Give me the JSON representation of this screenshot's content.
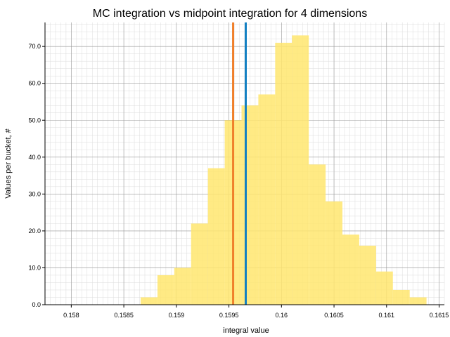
{
  "chart_data": {
    "type": "bar",
    "title": "MC integration vs midpoint integration for 4 dimensions",
    "xlabel": "integral value",
    "ylabel": "Values per bucket, #",
    "xlim": [
      0.15775,
      0.16155
    ],
    "ylim": [
      0,
      76.5
    ],
    "x_ticks": [
      0.158,
      0.1585,
      0.159,
      0.1595,
      0.16,
      0.1605,
      0.161,
      0.1615
    ],
    "x_tick_labels": [
      "0.158",
      "0.1585",
      "0.159",
      "0.1595",
      "0.16",
      "0.1605",
      "0.161",
      "0.1615"
    ],
    "y_ticks": [
      0,
      10,
      20,
      30,
      40,
      50,
      60,
      70
    ],
    "y_tick_labels": [
      "0.0",
      "10.0",
      "20.0",
      "30.0",
      "40.0",
      "50.0",
      "60.0",
      "70.0"
    ],
    "grid": true,
    "bin_edges": [
      0.15786,
      0.15802,
      0.15818,
      0.15834,
      0.1585,
      0.15866,
      0.15882,
      0.15898,
      0.15914,
      0.1593,
      0.15946,
      0.15962,
      0.15978,
      0.15994,
      0.1601,
      0.16026,
      0.16042,
      0.16058,
      0.16074,
      0.1609,
      0.16106,
      0.16122,
      0.16138,
      0.16154
    ],
    "counts": [
      0,
      0,
      0,
      0,
      0,
      2,
      8,
      10,
      22,
      37,
      50,
      54,
      57,
      71,
      73,
      38,
      28,
      19,
      16,
      9,
      4,
      2,
      0
    ],
    "bar_color": "#ffe66e",
    "vlines": [
      {
        "x": 0.15954,
        "color": "#f07f2a"
      },
      {
        "x": 0.15966,
        "color": "#1380c2"
      }
    ]
  }
}
